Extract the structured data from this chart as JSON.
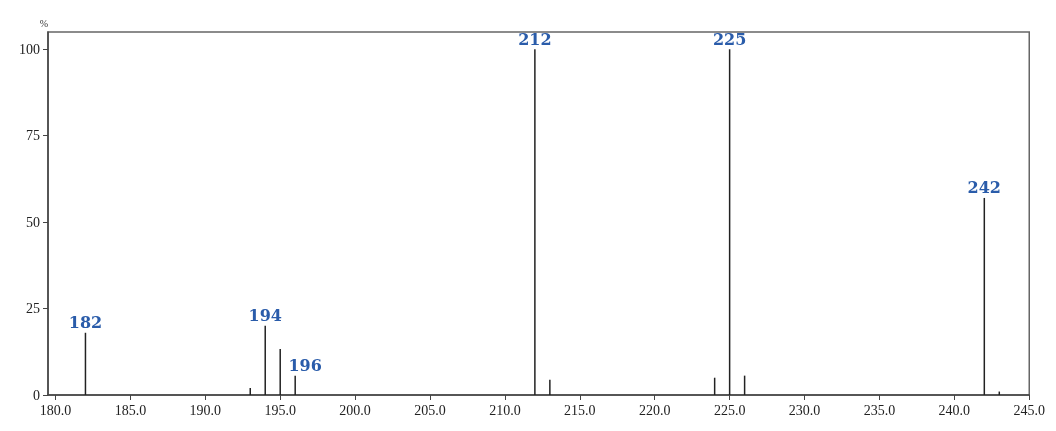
{
  "chart_data": {
    "type": "bar",
    "ylabel": "%",
    "x": [
      182,
      193,
      194,
      195,
      196,
      212,
      213,
      224,
      225,
      226,
      242,
      243
    ],
    "series": [
      {
        "color": "#222222",
        "values": [
          18,
          2,
          20,
          13.3,
          5.6,
          100,
          4.4,
          5,
          100,
          5.6,
          57,
          1
        ]
      }
    ],
    "xlim": [
      179.5,
      245
    ],
    "xticks": [
      {
        "value": 180,
        "label": "180.0"
      },
      {
        "value": 185,
        "label": "185.0"
      },
      {
        "value": 190,
        "label": "190.0"
      },
      {
        "value": 195,
        "label": "195.0"
      },
      {
        "value": 200,
        "label": "200.0"
      },
      {
        "value": 205,
        "label": "205.0"
      },
      {
        "value": 210,
        "label": "210.0"
      },
      {
        "value": 215,
        "label": "215.0"
      },
      {
        "value": 220,
        "label": "220.0"
      },
      {
        "value": 225,
        "label": "225.0"
      },
      {
        "value": 230,
        "label": "230.0"
      },
      {
        "value": 235,
        "label": "235.0"
      },
      {
        "value": 240,
        "label": "240.0"
      },
      {
        "value": 245,
        "label": "245.0"
      }
    ],
    "ylim": [
      0,
      105
    ],
    "yticks": [
      0,
      25,
      50,
      75,
      100
    ],
    "annotations": [
      {
        "text": "182",
        "x": 182,
        "y": 18
      },
      {
        "text": "194",
        "x": 194,
        "y": 20
      },
      {
        "text": "196",
        "x": 196,
        "y": 5.6
      },
      {
        "text": "212",
        "x": 212,
        "y": 100
      },
      {
        "text": "225",
        "x": 225,
        "y": 100
      },
      {
        "text": "242",
        "x": 242,
        "y": 57
      }
    ],
    "grid": false
  }
}
